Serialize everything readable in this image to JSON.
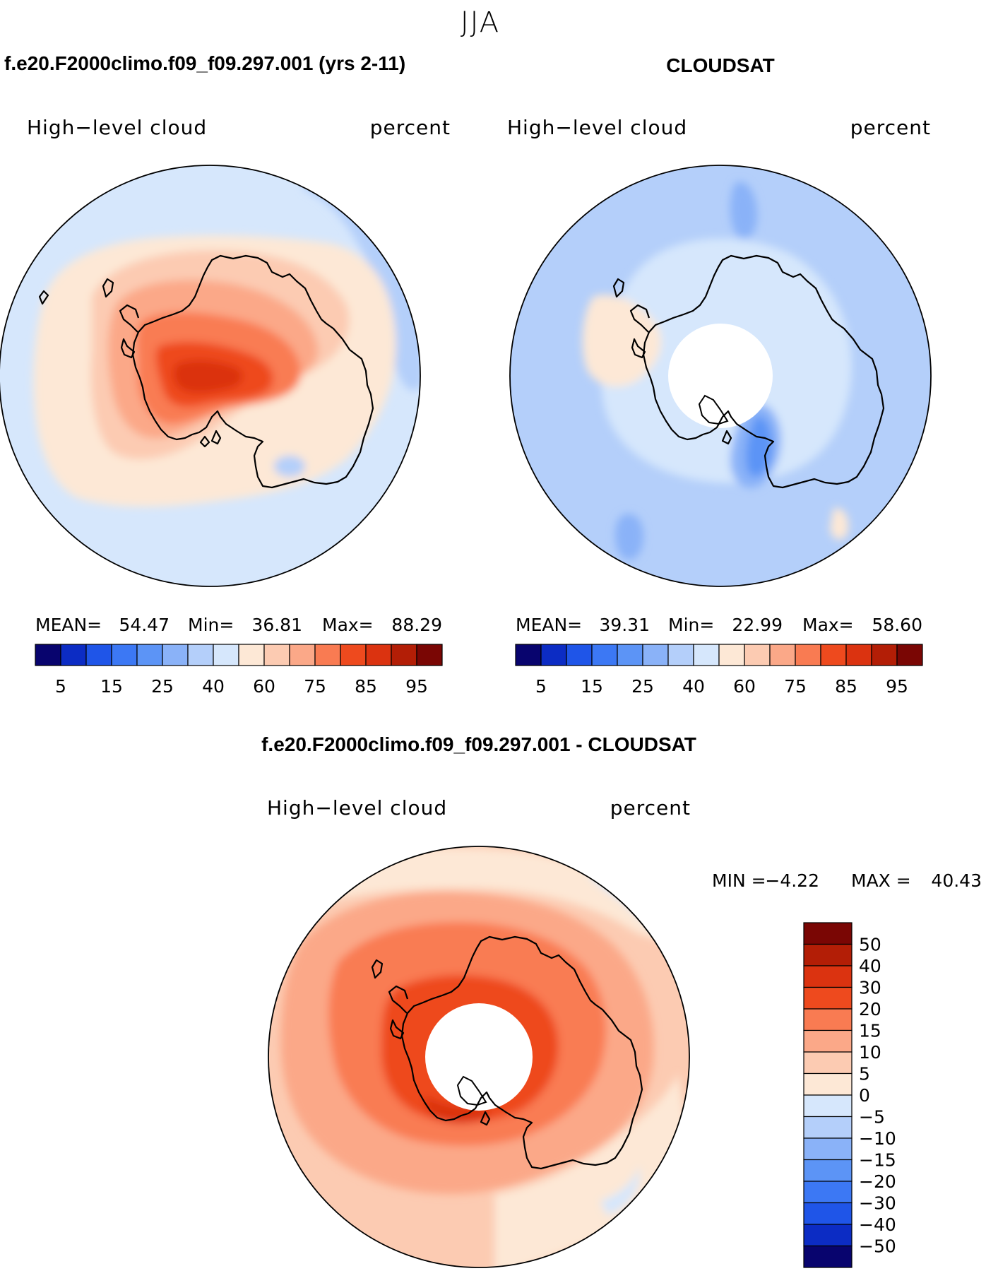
{
  "figure": {
    "season": "JJA",
    "model_title": "f.e20.F2000climo.f09_f09.297.001 (yrs 2-11)",
    "obs_title": "CLOUDSAT",
    "diff_title": "f.e20.F2000climo.f09_f09.297.001 - CLOUDSAT"
  },
  "panels": {
    "model": {
      "variable": "High−level cloud",
      "units": "percent",
      "stats": {
        "mean_label": "MEAN=",
        "mean": "54.47",
        "min_label": "Min=",
        "min": "36.81",
        "max_label": "Max=",
        "max": "88.29"
      }
    },
    "obs": {
      "variable": "High−level cloud",
      "units": "percent",
      "stats": {
        "mean_label": "MEAN=",
        "mean": "39.31",
        "min_label": "Min=",
        "min": "22.99",
        "max_label": "Max=",
        "max": "58.60"
      }
    },
    "diff": {
      "variable": "High−level cloud",
      "units": "percent",
      "min_label": "MIN =",
      "min": "−4.22",
      "max_label": "MAX =",
      "max": "40.43"
    }
  },
  "colorbars": {
    "abs_colors": [
      "#08046e",
      "#0c2cc4",
      "#1f55e8",
      "#3c78f4",
      "#5c94f6",
      "#8ab2f8",
      "#b4cffa",
      "#d6e7fc",
      "#fde8d6",
      "#fccbb2",
      "#fba888",
      "#f97b52",
      "#ee4a1e",
      "#db3310",
      "#b31e06",
      "#7a0604"
    ],
    "abs_labels": [
      "5",
      "15",
      "25",
      "40",
      "60",
      "75",
      "85",
      "95"
    ],
    "diff_colors": [
      "#7a0604",
      "#b31e06",
      "#db3310",
      "#ee4a1e",
      "#f97b52",
      "#fba888",
      "#fccbb2",
      "#fde8d6",
      "#d6e7fc",
      "#b4cffa",
      "#8ab2f8",
      "#5c94f6",
      "#3c78f4",
      "#1f55e8",
      "#0c2cc4",
      "#08046e"
    ],
    "diff_labels": [
      "50",
      "40",
      "30",
      "20",
      "15",
      "10",
      "5",
      "0",
      "−5",
      "−10",
      "−15",
      "−20",
      "−30",
      "−40",
      "−50"
    ]
  }
}
